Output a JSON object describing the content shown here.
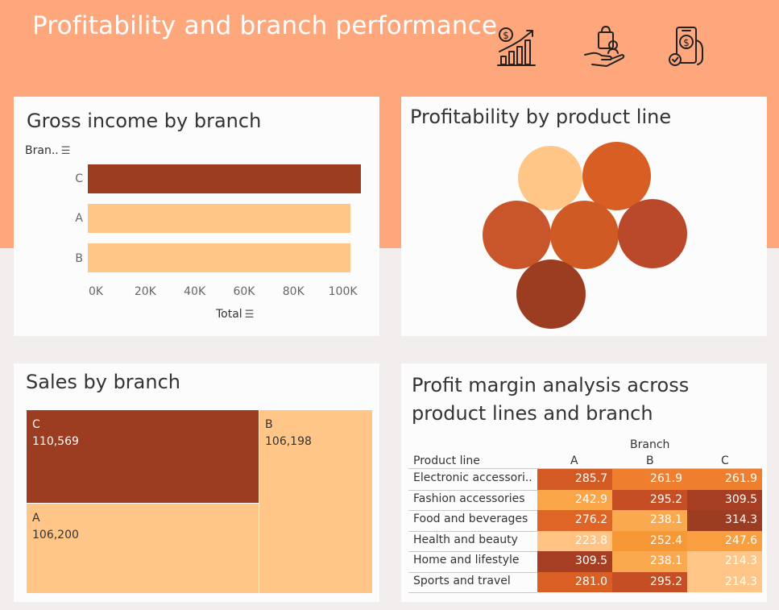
{
  "dashboard": {
    "title": "Profitability and branch performance"
  },
  "header_icons": [
    "dollar-growth-chart-icon",
    "hand-shopping-bag-icon",
    "mobile-payment-icon"
  ],
  "colors": {
    "header": "#ffa77c",
    "dark": "#9c3c21",
    "light": "#ffc687",
    "white": "#ffffff"
  },
  "gross_income": {
    "title": "Gross income by branch",
    "axis_header": "Bran..",
    "xlabel": "Total"
  },
  "product_profit": {
    "title": "Profitability by product line"
  },
  "sales": {
    "title": "Sales by branch"
  },
  "margin": {
    "title": "Profit margin analysis across product lines and branch",
    "column_group_header": "Branch",
    "row_header": "Product line"
  },
  "chart_data": [
    {
      "type": "bar",
      "orientation": "horizontal",
      "title": "Gross income by branch",
      "ylabel": "Bran..",
      "xlabel": "Total",
      "categories": [
        "C",
        "A",
        "B"
      ],
      "values": [
        110569,
        106200,
        106198
      ],
      "xlim": [
        0,
        110569
      ],
      "xticks": [
        0,
        20000,
        40000,
        60000,
        80000,
        100000
      ],
      "xtick_labels": [
        "0K",
        "20K",
        "40K",
        "60K",
        "80K",
        "100K"
      ],
      "colors": [
        "#9c3c21",
        "#ffc687",
        "#ffc687"
      ]
    },
    {
      "type": "packed-bubble",
      "title": "Profitability by product line",
      "bubbles": [
        {
          "color": "#ffc687",
          "size": 1
        },
        {
          "color": "#d85e23",
          "size": 1
        },
        {
          "color": "#c9562a",
          "size": 1
        },
        {
          "color": "#cf5a24",
          "size": 1
        },
        {
          "color": "#b9492a",
          "size": 1
        },
        {
          "color": "#9c3c21",
          "size": 1
        }
      ]
    },
    {
      "type": "treemap",
      "title": "Sales by branch",
      "items": [
        {
          "label": "C",
          "value": 110569,
          "display": "110,569",
          "color": "#9c3c21"
        },
        {
          "label": "B",
          "value": 106198,
          "display": "106,198",
          "color": "#ffc687"
        },
        {
          "label": "A",
          "value": 106200,
          "display": "106,200",
          "color": "#ffc687"
        }
      ]
    },
    {
      "type": "heatmap",
      "title": "Profit margin analysis across product lines and branch",
      "column_group": "Branch",
      "row_header": "Product line",
      "columns": [
        "A",
        "B",
        "C"
      ],
      "rows": [
        {
          "label": "Electronic accessori..",
          "values": [
            "285.7",
            "261.9",
            "261.9"
          ],
          "colors": [
            "#d45a23",
            "#ef7f2e",
            "#ef7f2e"
          ]
        },
        {
          "label": "Fashion accessories",
          "values": [
            "242.9",
            "295.2",
            "309.5"
          ],
          "colors": [
            "#f9a548",
            "#c64e24",
            "#a53e22"
          ]
        },
        {
          "label": "Food and beverages",
          "values": [
            "276.2",
            "238.1",
            "314.3"
          ],
          "colors": [
            "#df6526",
            "#fba94f",
            "#9c3c21"
          ]
        },
        {
          "label": "Health and beauty",
          "values": [
            "223.8",
            "252.4",
            "247.6"
          ],
          "colors": [
            "#ffc383",
            "#f79837",
            "#fa9f40"
          ]
        },
        {
          "label": "Home and lifestyle",
          "values": [
            "309.5",
            "238.1",
            "214.3"
          ],
          "colors": [
            "#a53e22",
            "#fba94f",
            "#ffc687"
          ]
        },
        {
          "label": "Sports and travel",
          "values": [
            "281.0",
            "295.2",
            "214.3"
          ],
          "colors": [
            "#d95f24",
            "#c64e24",
            "#ffc687"
          ]
        }
      ]
    }
  ]
}
